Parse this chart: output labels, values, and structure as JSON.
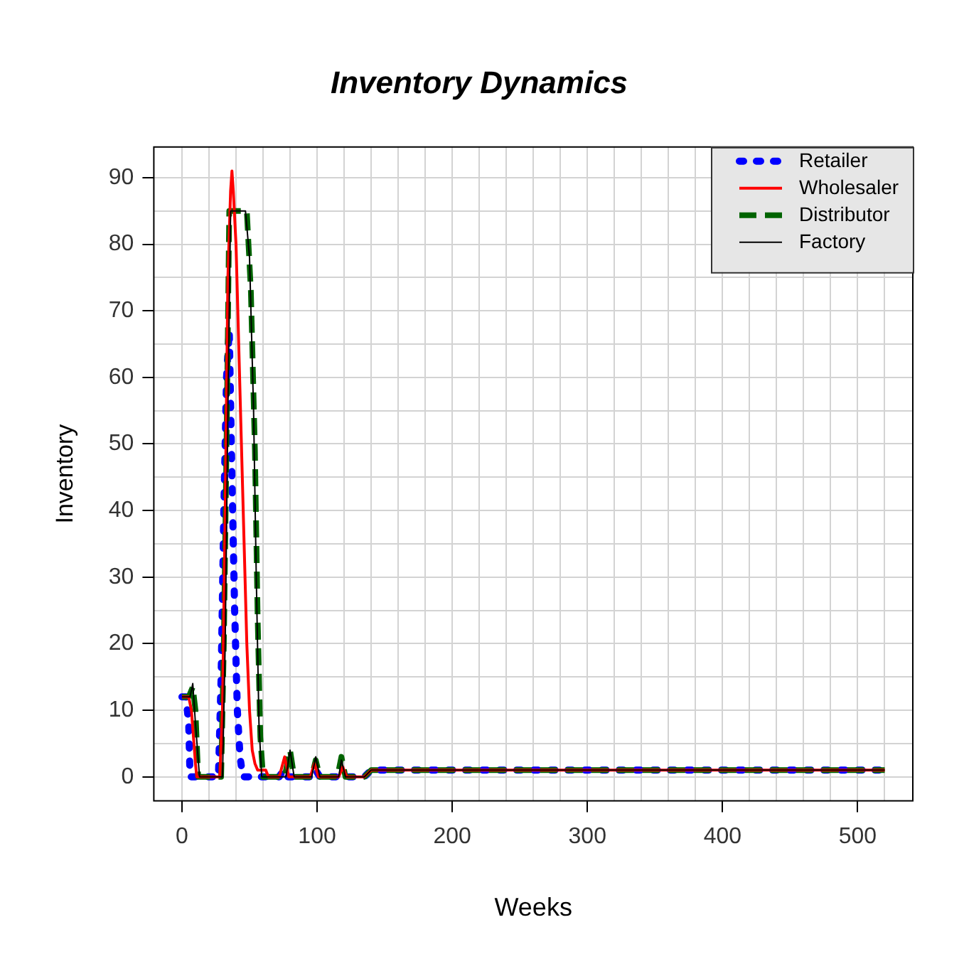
{
  "chart_data": {
    "type": "line",
    "title": "Inventory Dynamics",
    "xlabel": "Weeks",
    "ylabel": "Inventory",
    "xlim": [
      -20.8,
      540.8
    ],
    "xticks": [
      0,
      {
        "value": 20,
        "label": null
      },
      {
        "value": 40,
        "label": null
      },
      {
        "value": 60,
        "label": null
      },
      {
        "value": 80,
        "label": null
      },
      100,
      {
        "value": 120,
        "label": null
      },
      {
        "value": 140,
        "label": null
      },
      {
        "value": 160,
        "label": null
      },
      {
        "value": 180,
        "label": null
      },
      200,
      {
        "value": 220,
        "label": null
      },
      {
        "value": 240,
        "label": null
      },
      {
        "value": 260,
        "label": null
      },
      {
        "value": 280,
        "label": null
      },
      300,
      {
        "value": 320,
        "label": null
      },
      {
        "value": 340,
        "label": null
      },
      {
        "value": 360,
        "label": null
      },
      {
        "value": 380,
        "label": null
      },
      400,
      {
        "value": 420,
        "label": null
      },
      {
        "value": 440,
        "label": null
      },
      {
        "value": 460,
        "label": null
      },
      {
        "value": 480,
        "label": null
      },
      500,
      {
        "value": 520,
        "label": null
      }
    ],
    "ylim": [
      -3.6,
      94.6
    ],
    "yticks": [
      0,
      {
        "value": 5,
        "label": null
      },
      10,
      {
        "value": 15,
        "label": null
      },
      20,
      {
        "value": 25,
        "label": null
      },
      30,
      {
        "value": 35,
        "label": null
      },
      40,
      {
        "value": 45,
        "label": null
      },
      50,
      {
        "value": 55,
        "label": null
      },
      60,
      {
        "value": 65,
        "label": null
      },
      70,
      {
        "value": 75,
        "label": null
      },
      80,
      {
        "value": 85,
        "label": null
      },
      90
    ],
    "grid": true,
    "legend": "top right",
    "marker": "none",
    "series": [
      {
        "name": "Retailer",
        "color": "#0000ff",
        "line_style": "dotted",
        "x": [
          0,
          3,
          5,
          6,
          27,
          29,
          31,
          33,
          35,
          37,
          39,
          41,
          43,
          45,
          72,
          75,
          78,
          96,
          99,
          102,
          135,
          140,
          520
        ],
        "values": [
          12,
          12,
          8,
          0,
          0,
          15,
          40,
          60,
          67,
          45,
          25,
          10,
          3,
          0,
          0,
          1,
          0,
          0,
          1,
          0,
          0,
          1,
          1
        ]
      },
      {
        "name": "Wholesaler",
        "color": "#ff0000",
        "line_style": "solid",
        "x": [
          0,
          5,
          7,
          10,
          11,
          28,
          30,
          32,
          34,
          36,
          37,
          38,
          40,
          42,
          44,
          46,
          48,
          50,
          52,
          54,
          56,
          62,
          64,
          72,
          76,
          79,
          95,
          98,
          101,
          116,
          119,
          122,
          135,
          140,
          520
        ],
        "values": [
          12,
          12,
          10,
          2,
          0,
          0,
          10,
          40,
          75,
          88,
          91,
          88,
          80,
          65,
          50,
          35,
          20,
          10,
          4,
          2,
          1,
          1,
          0,
          0,
          3,
          0,
          0,
          2,
          0,
          0,
          1.5,
          0,
          0,
          1,
          1
        ]
      },
      {
        "name": "Distributor",
        "color": "#006400",
        "line_style": "dashed",
        "x": [
          0,
          5,
          8,
          10,
          12,
          29,
          31,
          33,
          35,
          48,
          51,
          54,
          56,
          58,
          60,
          76,
          80,
          83,
          96,
          99,
          102,
          115,
          118,
          121,
          135,
          140,
          520
        ],
        "values": [
          12,
          12,
          13.5,
          10,
          0,
          0,
          20,
          50,
          85,
          85,
          73,
          49,
          24,
          6,
          0,
          0,
          4,
          0,
          0,
          2.5,
          0,
          0,
          3,
          0,
          0,
          1,
          1
        ]
      },
      {
        "name": "Factory",
        "color": "#000000",
        "line_style": "solid",
        "x": [
          0,
          6,
          8,
          10,
          13,
          30,
          32,
          34,
          36,
          47,
          50,
          53,
          55,
          57,
          59,
          77,
          80,
          83,
          96,
          99,
          102,
          116,
          118,
          121,
          135,
          140,
          520
        ],
        "values": [
          12,
          12,
          14,
          8,
          0,
          0,
          20,
          55,
          85,
          85,
          78,
          55,
          30,
          8,
          0,
          0,
          4,
          0,
          0,
          3,
          0,
          0,
          2.5,
          0,
          0,
          1,
          1
        ]
      }
    ]
  }
}
